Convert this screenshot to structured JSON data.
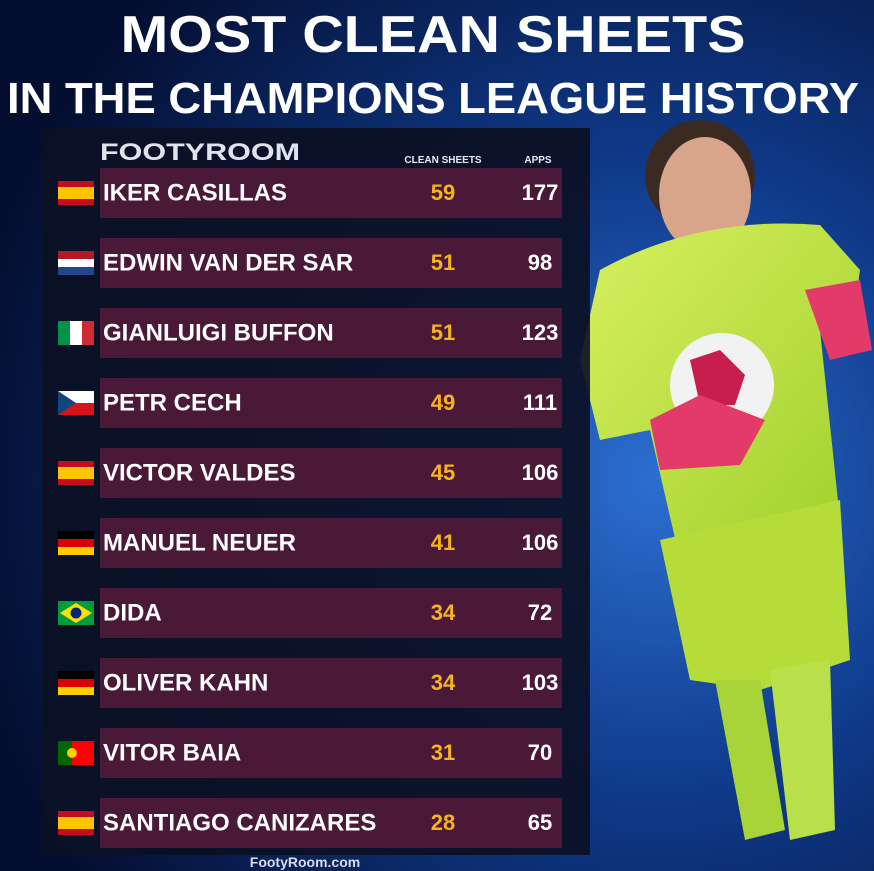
{
  "header": {
    "title_line1": "MOST CLEAN SHEETS",
    "title_line2": "IN THE CHAMPIONS LEAGUE HISTORY"
  },
  "table": {
    "logo": "FOOTYROOM",
    "columns": [
      "CLEAN SHEETS",
      "APPS"
    ],
    "rows": [
      [
        "IKER CASILLAS",
        59,
        177
      ],
      [
        "EDWIN VAN DER SAR",
        51,
        98
      ],
      [
        "GIANLUIGI BUFFON",
        51,
        123
      ],
      [
        "PETR CECH",
        49,
        111
      ],
      [
        "VICTOR VALDES",
        45,
        106
      ],
      [
        "MANUEL NEUER",
        41,
        106
      ],
      [
        "DIDA",
        34,
        72
      ],
      [
        "OLIVER KAHN",
        34,
        103
      ],
      [
        "VITOR BAIA",
        31,
        70
      ],
      [
        "SANTIAGO CANIZARES",
        28,
        65
      ]
    ]
  },
  "footer": {
    "source": "FootyRoom.com"
  }
}
